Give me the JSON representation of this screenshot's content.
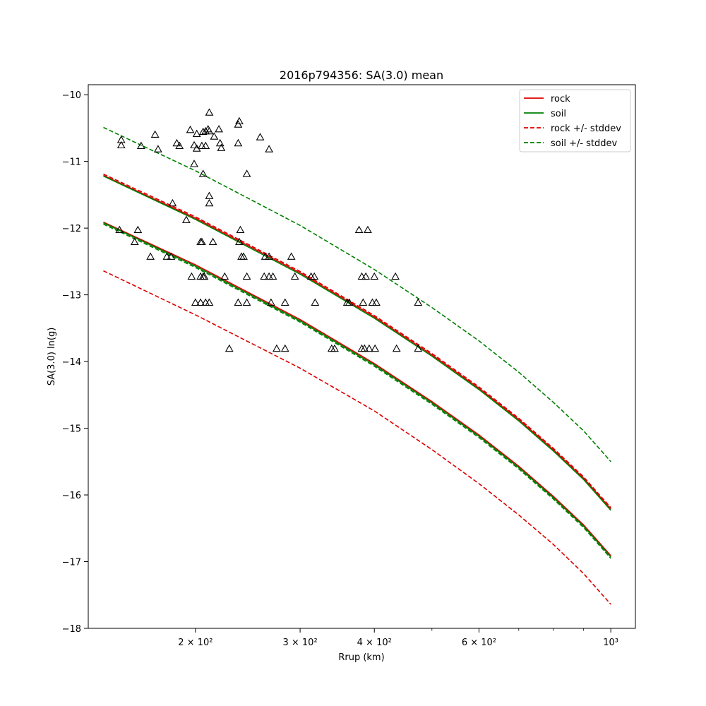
{
  "chart_data": {
    "type": "scatter",
    "title": "2016p794356: SA(3.0) mean",
    "xlabel": "Rrup (km)",
    "ylabel": "SA(3.0) ln(g)",
    "x_scale": "log",
    "xlim": [
      132,
      1100
    ],
    "ylim": [
      -18,
      -9.85
    ],
    "x_major_ticks": [
      {
        "value": 200,
        "label": "2 × 10²"
      },
      {
        "value": 300,
        "label": "3 × 10²"
      },
      {
        "value": 400,
        "label": "4 × 10²"
      },
      {
        "value": 600,
        "label": "6 × 10²"
      },
      {
        "value": 1000,
        "label": "10³"
      }
    ],
    "x_minor_ticks": [
      500,
      700,
      800,
      900
    ],
    "y_ticks": [
      -18,
      -17,
      -16,
      -15,
      -14,
      -13,
      -12,
      -11,
      -10
    ],
    "grid": false,
    "legend_position": "top-right",
    "colors": {
      "rock": "#dd0000",
      "soil": "#007f00",
      "observed": "#000000"
    },
    "series": [
      {
        "name": "rock",
        "kind": "line",
        "style": "solid",
        "color": "#dd0000",
        "x": [
          140,
          200,
          300,
          400,
          500,
          600,
          700,
          800,
          900,
          1000
        ],
        "y": [
          -11.91,
          -12.55,
          -13.37,
          -14.03,
          -14.6,
          -15.1,
          -15.57,
          -16.02,
          -16.45,
          -16.91
        ]
      },
      {
        "name": "rock",
        "kind": "line",
        "style": "solid",
        "color": "#dd0000",
        "x": [
          140,
          200,
          300,
          400,
          500,
          600,
          700,
          800,
          900,
          1000
        ],
        "y": [
          -11.21,
          -11.85,
          -12.67,
          -13.33,
          -13.9,
          -14.4,
          -14.87,
          -15.32,
          -15.75,
          -16.21
        ]
      },
      {
        "name": "soil",
        "kind": "line",
        "style": "solid",
        "color": "#007f00",
        "x": [
          140,
          200,
          300,
          400,
          500,
          600,
          700,
          800,
          900,
          1000
        ],
        "y": [
          -11.92,
          -12.57,
          -13.39,
          -14.05,
          -14.62,
          -15.12,
          -15.59,
          -16.04,
          -16.47,
          -16.93
        ]
      },
      {
        "name": "soil",
        "kind": "line",
        "style": "solid",
        "color": "#007f00",
        "x": [
          140,
          200,
          300,
          400,
          500,
          600,
          700,
          800,
          900,
          1000
        ],
        "y": [
          -11.22,
          -11.87,
          -12.69,
          -13.35,
          -13.92,
          -14.42,
          -14.89,
          -15.34,
          -15.77,
          -16.23
        ]
      },
      {
        "name": "rock +/- stddev",
        "kind": "line",
        "style": "dashed",
        "color": "#dd0000",
        "x": [
          140,
          200,
          300,
          400,
          500,
          600,
          700,
          800,
          900,
          1000
        ],
        "y": [
          -12.64,
          -13.3,
          -14.1,
          -14.74,
          -15.32,
          -15.83,
          -16.3,
          -16.74,
          -17.18,
          -17.64
        ]
      },
      {
        "name": "rock +/- stddev",
        "kind": "line",
        "style": "dashed",
        "color": "#dd0000",
        "x": [
          140,
          200,
          300,
          400,
          500,
          600,
          700,
          800,
          900,
          1000
        ],
        "y": [
          -11.19,
          -11.83,
          -12.65,
          -13.31,
          -13.88,
          -14.38,
          -14.85,
          -15.3,
          -15.73,
          -16.19
        ]
      },
      {
        "name": "soil +/- stddev",
        "kind": "line",
        "style": "dashed",
        "color": "#007f00",
        "x": [
          140,
          200,
          300,
          400,
          500,
          600,
          700,
          800,
          900,
          1000
        ],
        "y": [
          -10.49,
          -11.14,
          -11.96,
          -12.62,
          -13.19,
          -13.69,
          -14.16,
          -14.61,
          -15.04,
          -15.5
        ]
      },
      {
        "name": "soil +/- stddev",
        "kind": "line",
        "style": "dashed",
        "color": "#007f00",
        "x": [
          140,
          200,
          300,
          400,
          500,
          600,
          700,
          800,
          900,
          1000
        ],
        "y": [
          -11.94,
          -12.59,
          -13.41,
          -14.07,
          -14.64,
          -15.14,
          -15.61,
          -16.06,
          -16.49,
          -16.95
        ]
      },
      {
        "kind": "scatter",
        "marker": "triangle-open",
        "color": "#000000",
        "points": [
          [
            150,
            -10.68
          ],
          [
            150,
            -10.76
          ],
          [
            162,
            -10.77
          ],
          [
            171,
            -10.6
          ],
          [
            173,
            -10.82
          ],
          [
            186,
            -10.73
          ],
          [
            188,
            -10.77
          ],
          [
            196,
            -10.53
          ],
          [
            199,
            -10.76
          ],
          [
            201,
            -10.59
          ],
          [
            201,
            -10.81
          ],
          [
            205,
            -10.77
          ],
          [
            206,
            -10.56
          ],
          [
            208,
            -10.55
          ],
          [
            208,
            -10.77
          ],
          [
            210,
            -10.52
          ],
          [
            211,
            -10.55
          ],
          [
            211,
            -10.27
          ],
          [
            215,
            -10.63
          ],
          [
            219,
            -10.52
          ],
          [
            221,
            -10.8
          ],
          [
            220,
            -10.73
          ],
          [
            236,
            -10.45
          ],
          [
            236,
            -10.73
          ],
          [
            237,
            -10.4
          ],
          [
            257,
            -10.64
          ],
          [
            266,
            -10.82
          ],
          [
            199,
            -11.04
          ],
          [
            206,
            -11.19
          ],
          [
            244,
            -11.19
          ],
          [
            211,
            -11.52
          ],
          [
            211,
            -11.63
          ],
          [
            183,
            -11.63
          ],
          [
            149,
            -12.03
          ],
          [
            158,
            -12.21
          ],
          [
            160,
            -12.03
          ],
          [
            193,
            -11.88
          ],
          [
            168,
            -12.43
          ],
          [
            179,
            -12.43
          ],
          [
            182,
            -12.43
          ],
          [
            204,
            -12.21
          ],
          [
            205,
            -12.21
          ],
          [
            214,
            -12.21
          ],
          [
            237,
            -12.21
          ],
          [
            238,
            -12.03
          ],
          [
            239,
            -12.43
          ],
          [
            241,
            -12.43
          ],
          [
            262,
            -12.43
          ],
          [
            266,
            -12.43
          ],
          [
            290,
            -12.43
          ],
          [
            377,
            -12.03
          ],
          [
            390,
            -12.03
          ],
          [
            197,
            -12.73
          ],
          [
            204,
            -12.73
          ],
          [
            206,
            -12.73
          ],
          [
            207,
            -12.73
          ],
          [
            224,
            -12.73
          ],
          [
            244,
            -12.73
          ],
          [
            261,
            -12.73
          ],
          [
            266,
            -12.73
          ],
          [
            270,
            -12.73
          ],
          [
            294,
            -12.73
          ],
          [
            313,
            -12.73
          ],
          [
            317,
            -12.73
          ],
          [
            381,
            -12.73
          ],
          [
            387,
            -12.73
          ],
          [
            400,
            -12.73
          ],
          [
            434,
            -12.73
          ],
          [
            200,
            -13.12
          ],
          [
            204,
            -13.12
          ],
          [
            208,
            -13.12
          ],
          [
            211,
            -13.12
          ],
          [
            236,
            -13.12
          ],
          [
            244,
            -13.12
          ],
          [
            268,
            -13.12
          ],
          [
            283,
            -13.12
          ],
          [
            318,
            -13.12
          ],
          [
            360,
            -13.12
          ],
          [
            363,
            -13.12
          ],
          [
            383,
            -13.12
          ],
          [
            397,
            -13.12
          ],
          [
            403,
            -13.12
          ],
          [
            474,
            -13.12
          ],
          [
            228,
            -13.81
          ],
          [
            274,
            -13.81
          ],
          [
            283,
            -13.81
          ],
          [
            339,
            -13.81
          ],
          [
            343,
            -13.81
          ],
          [
            381,
            -13.81
          ],
          [
            385,
            -13.81
          ],
          [
            392,
            -13.81
          ],
          [
            401,
            -13.81
          ],
          [
            436,
            -13.81
          ],
          [
            474,
            -13.81
          ]
        ]
      }
    ]
  },
  "legend": [
    {
      "label": "rock",
      "color": "#dd0000",
      "style": "solid"
    },
    {
      "label": "soil",
      "color": "#007f00",
      "style": "solid"
    },
    {
      "label": "rock +/- stddev",
      "color": "#dd0000",
      "style": "dashed"
    },
    {
      "label": "soil +/- stddev",
      "color": "#007f00",
      "style": "dashed"
    }
  ]
}
